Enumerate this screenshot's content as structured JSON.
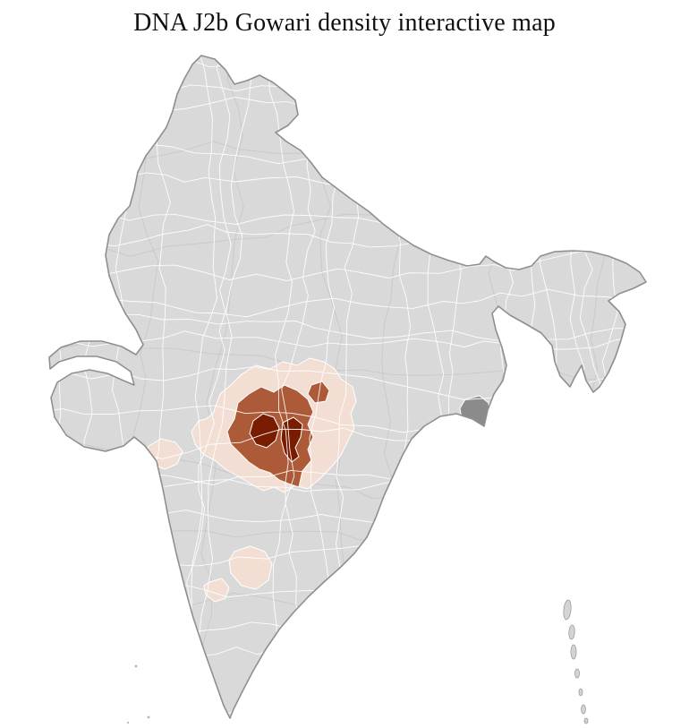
{
  "title": "DNA J2b Gowari density interactive map",
  "map": {
    "country": "India",
    "colors": {
      "land": "#d9d9d9",
      "outline": "#8f8f8f",
      "district_border": "#ffffff",
      "state_border": "#c7c7c7",
      "density_low": "#f2ded3",
      "density_medium": "#ad5a38",
      "density_high": "#7a1c02",
      "dark_district": "#8b8b8b",
      "island": "#d4d4d4",
      "island_outline": "#9a9a9a"
    }
  }
}
